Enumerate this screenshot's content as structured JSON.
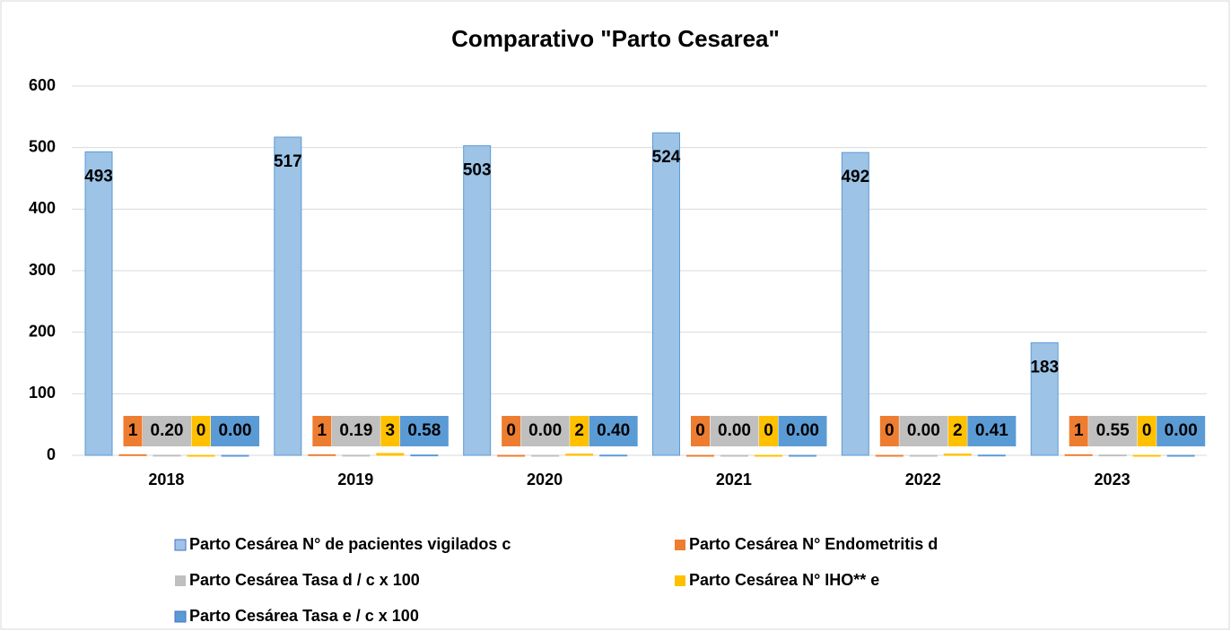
{
  "chart_data": {
    "type": "bar",
    "title": "Comparativo \"Parto Cesarea\"",
    "categories": [
      "2018",
      "2019",
      "2020",
      "2021",
      "2022",
      "2023"
    ],
    "series": [
      {
        "name": "Parto Cesárea N° de pacientes vigilados c",
        "color": "#9dc3e6",
        "values": [
          493,
          517,
          503,
          524,
          492,
          183
        ]
      },
      {
        "name": "Parto Cesárea N° Endometritis d",
        "color": "#ed7d31",
        "values": [
          1,
          1,
          0,
          0,
          0,
          1
        ]
      },
      {
        "name": "Parto Cesárea Tasa d / c x 100",
        "color": "#bfbfbf",
        "values": [
          0.2,
          0.19,
          0,
          0,
          0,
          0.55
        ],
        "value_labels": [
          "0.20",
          "0.19",
          "0.00",
          "0.00",
          "0.00",
          "0.55"
        ]
      },
      {
        "name": "Parto Cesárea N° IHO** e",
        "color": "#ffc000",
        "values": [
          0,
          3,
          2,
          0,
          2,
          0
        ]
      },
      {
        "name": "Parto Cesárea Tasa e / c x 100",
        "color": "#5b9bd5",
        "values": [
          0,
          0.58,
          0.4,
          0,
          0.41,
          0
        ],
        "value_labels": [
          "0.00",
          "0.58",
          "0.40",
          "0.00",
          "0.41",
          "0.00"
        ]
      }
    ],
    "ylim": [
      0,
      600
    ],
    "yticks": [
      0,
      100,
      200,
      300,
      400,
      500,
      600
    ],
    "grid": true,
    "legend": "bottom"
  }
}
